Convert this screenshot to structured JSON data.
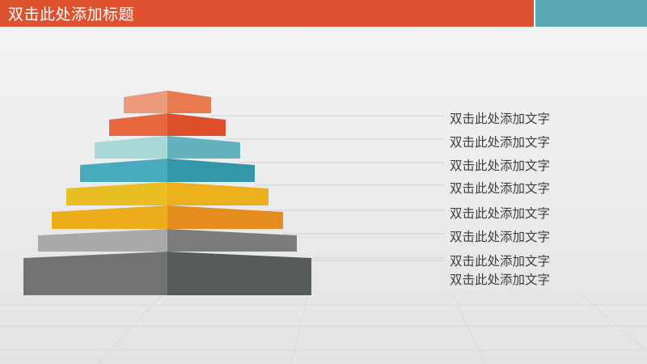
{
  "title": "双击此处添加标题",
  "labels": [
    "双击此处添加文字",
    "双击此处添加文字",
    "双击此处添加文字",
    "双击此处添加文字",
    "双击此处添加文字",
    "双击此处添加文字",
    "双击此处添加文字",
    "双击此处添加文字"
  ],
  "colors": {
    "title_bar": "#df5230",
    "accent_bar": "#5aa9b6",
    "tiers": [
      {
        "light": "#eb9b79",
        "dark": "#e87a4f"
      },
      {
        "light": "#e8673e",
        "dark": "#dc4f2a"
      },
      {
        "light": "#a7d7d6",
        "dark": "#63b2c0"
      },
      {
        "light": "#47abbd",
        "dark": "#3497a9"
      },
      {
        "light": "#e9be22",
        "dark": "#ecb01d"
      },
      {
        "light": "#ebae1a",
        "dark": "#e48c1d"
      },
      {
        "light": "#a8a9aa",
        "dark": "#7b7c7d"
      },
      {
        "light": "#717273",
        "dark": "#565a5b"
      }
    ]
  }
}
